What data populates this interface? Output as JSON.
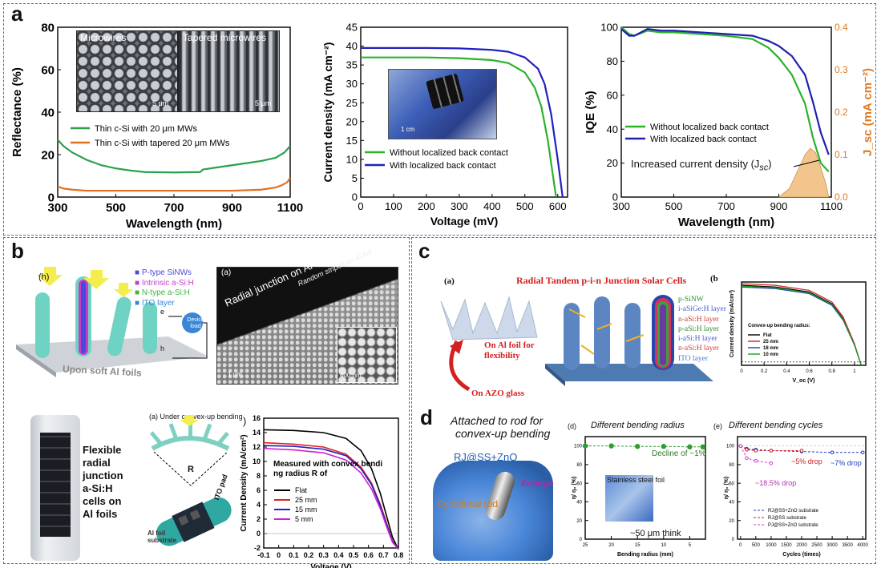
{
  "panel_labels": {
    "a": "a",
    "b": "b",
    "c": "c",
    "d": "d"
  },
  "a": {
    "sem": {
      "left": "Microwires",
      "right": "Tapered microwires",
      "scale_left": "5 μm",
      "scale_right": "5 μm"
    },
    "photo_scale": "1 cm",
    "annotation": "Increased current density (J",
    "annotation_sub": "sc",
    "annotation_close": ")"
  },
  "b": {
    "h_label": "(h)",
    "legend": [
      "P-type SiNWs",
      "Intrinsic a-Si:H",
      "N-type a-Si:H",
      "ITO layer"
    ],
    "device_load": "Device load",
    "e_label": "e",
    "h_carrier": "h",
    "substrate": "Upon soft Al foils",
    "sem_label": "(a)",
    "sem_text1": "Radial junction on Al foil",
    "sem_text2": "Random stripes on Al foil",
    "sem_scale1": "1 μm",
    "sem_scale2": "400 nm",
    "photo_text": [
      "Flexible",
      "radial",
      "junction",
      "a-Si:H",
      "cells on",
      "Al foils"
    ],
    "bend_title": "(a) Under convex-up bending",
    "bend_R": "R",
    "ito_pad": "ITO pad",
    "al_sub": "Al foil substrate",
    "paren": ")"
  },
  "c": {
    "a_label": "(a)",
    "b_label": "(b",
    "title": "Radial Tandem p-i-n Junction Solar Cells",
    "left_text1": "On Al foil for",
    "left_text2": "flexibility",
    "left_text3": "On AZO glass",
    "layers": [
      {
        "text": "p-SiNW",
        "color": "#2e8b2e"
      },
      {
        "text": "i-aSiGe:H layer",
        "color": "#4a5bd0"
      },
      {
        "text": "n-aSi:H layer",
        "color": "#d03a3a"
      },
      {
        "text": "p-aSi:H layer",
        "color": "#2e8b2e"
      },
      {
        "text": "i-aSi:H layer",
        "color": "#4a5bd0"
      },
      {
        "text": "n-aSi:H layer",
        "color": "#d03a3a"
      },
      {
        "text": "ITO layer",
        "color": "#4a7bd0"
      }
    ]
  },
  "d": {
    "title1": "Attached to rod for",
    "title2": "convex-up bending",
    "rj": "RJ@SS+ZnO",
    "enlarge": "Enlarge",
    "rod": "Cylindrical rod",
    "sub_d_label": "(d)",
    "sub_d_title": "Different  bending radius",
    "sub_e_label": "(e)",
    "sub_e_title": "Different  bending cycles",
    "steel_foil": "Stainless steel foil",
    "thick": "~50 μm think",
    "decline": "Decline of ~1%",
    "drop5": "~5% drop",
    "drop7": "~7% drop",
    "drop18": "~18.5% drop"
  },
  "chart_data": [
    {
      "id": "a1",
      "type": "line",
      "xlabel": "Wavelength (nm)",
      "ylabel": "Reflectance (%)",
      "xlim": [
        300,
        1100
      ],
      "ylim": [
        0,
        80
      ],
      "xticks": [
        300,
        500,
        700,
        900,
        1100
      ],
      "yticks": [
        0,
        20,
        40,
        60,
        80
      ],
      "series": [
        {
          "name": "Thin c-Si with 20 μm MWs",
          "color": "#2aa14d",
          "x": [
            300,
            320,
            350,
            400,
            450,
            500,
            550,
            600,
            700,
            790,
            800,
            850,
            900,
            950,
            1000,
            1050,
            1080,
            1100
          ],
          "y": [
            27,
            24,
            21,
            17.5,
            15,
            13.5,
            12.5,
            11.8,
            11.6,
            11.8,
            13,
            14,
            15,
            16,
            17,
            18.5,
            21,
            24
          ]
        },
        {
          "name": "Thin c-Si with tapered 20 μm MWs",
          "color": "#e07020",
          "x": [
            300,
            320,
            350,
            400,
            500,
            600,
            700,
            800,
            900,
            1000,
            1050,
            1070,
            1090,
            1100
          ],
          "y": [
            5,
            4,
            3.5,
            3,
            3,
            3,
            3,
            3,
            3,
            3.5,
            4.5,
            5.5,
            7,
            9
          ]
        }
      ]
    },
    {
      "id": "a2",
      "type": "line",
      "xlabel": "Voltage (mV)",
      "ylabel": "Current density (mA cm⁻²)",
      "xlim": [
        0,
        630
      ],
      "ylim": [
        0,
        45
      ],
      "xticks": [
        0,
        100,
        200,
        300,
        400,
        500,
        600
      ],
      "yticks": [
        0,
        5,
        10,
        15,
        20,
        25,
        30,
        35,
        40,
        45
      ],
      "series": [
        {
          "name": "Without localized back contact",
          "color": "#2bb32b",
          "x": [
            0,
            100,
            200,
            300,
            400,
            450,
            500,
            530,
            550,
            570,
            585,
            595
          ],
          "y": [
            37,
            37,
            37,
            36.8,
            36.3,
            35.5,
            33,
            29,
            24,
            15,
            6,
            0
          ]
        },
        {
          "name": "With localized back contact",
          "color": "#2020c0",
          "x": [
            0,
            100,
            200,
            300,
            400,
            450,
            500,
            540,
            560,
            580,
            600,
            615
          ],
          "y": [
            39.5,
            39.5,
            39.5,
            39.4,
            39,
            38.5,
            37,
            34,
            30,
            22,
            10,
            0
          ]
        }
      ]
    },
    {
      "id": "a3",
      "type": "line",
      "xlabel": "Wavelength (nm)",
      "ylabel": "IQE (%)",
      "ylabel2": "J_sc (mA cm⁻²)",
      "xlim": [
        300,
        1100
      ],
      "ylim": [
        0,
        100
      ],
      "ylim2": [
        0,
        0.4
      ],
      "xticks": [
        300,
        500,
        700,
        900,
        1100
      ],
      "yticks": [
        0,
        20,
        40,
        60,
        80,
        100
      ],
      "yticks2": [
        0.0,
        0.1,
        0.2,
        0.3,
        0.4
      ],
      "series": [
        {
          "name": "Without localized back contact",
          "color": "#2bb32b",
          "x": [
            300,
            330,
            350,
            400,
            450,
            500,
            600,
            700,
            800,
            860,
            900,
            950,
            1000,
            1030,
            1060,
            1090
          ],
          "y": [
            100,
            96,
            95,
            98,
            97,
            97,
            96,
            95,
            93,
            88,
            82,
            72,
            55,
            35,
            20,
            15
          ]
        },
        {
          "name": "With localized back contact",
          "color": "#2020b0",
          "x": [
            300,
            330,
            350,
            400,
            450,
            500,
            600,
            700,
            800,
            860,
            900,
            950,
            1000,
            1030,
            1060,
            1090
          ],
          "y": [
            99,
            95,
            95,
            99,
            98,
            98,
            97,
            96,
            95,
            92,
            89,
            83,
            72,
            56,
            38,
            25
          ]
        }
      ]
    },
    {
      "id": "b1",
      "type": "line",
      "xlabel": "Voltage (V)",
      "ylabel": "Current Density (mA/cm²)",
      "xlim": [
        -0.1,
        0.8
      ],
      "ylim": [
        -2,
        16
      ],
      "xticks": [
        -0.1,
        0.0,
        0.1,
        0.2,
        0.3,
        0.4,
        0.5,
        0.6,
        0.7,
        0.8
      ],
      "yticks": [
        -2,
        0,
        2,
        4,
        6,
        8,
        10,
        12,
        14,
        16
      ],
      "legend_title": "Measured with convex bending radius R of",
      "series": [
        {
          "name": "Flat",
          "color": "#000000",
          "x": [
            -0.1,
            0.1,
            0.3,
            0.45,
            0.55,
            0.62,
            0.68,
            0.72,
            0.76,
            0.8
          ],
          "y": [
            14.4,
            14.3,
            14,
            13.2,
            11.5,
            9,
            5.5,
            2.5,
            -0.5,
            -2.2
          ]
        },
        {
          "name": "25 mm",
          "color": "#e02020",
          "x": [
            -0.1,
            0.1,
            0.3,
            0.45,
            0.55,
            0.62,
            0.68,
            0.72,
            0.76,
            0.8
          ],
          "y": [
            12.6,
            12.4,
            12,
            11,
            9.2,
            7,
            4,
            1.5,
            -1,
            -2.2
          ]
        },
        {
          "name": "15 mm",
          "color": "#2020c0",
          "x": [
            -0.1,
            0.1,
            0.3,
            0.45,
            0.55,
            0.62,
            0.68,
            0.72,
            0.76,
            0.8
          ],
          "y": [
            12.2,
            12.1,
            11.7,
            10.8,
            9,
            6.8,
            3.8,
            1.3,
            -1.1,
            -2.2
          ]
        },
        {
          "name": "5 mm",
          "color": "#d020d0",
          "x": [
            -0.1,
            0.1,
            0.3,
            0.45,
            0.55,
            0.62,
            0.68,
            0.72,
            0.76,
            0.8
          ],
          "y": [
            11.8,
            11.6,
            11.2,
            10.2,
            8.4,
            6.2,
            3.4,
            1,
            -1.2,
            -2.2
          ]
        }
      ]
    },
    {
      "id": "c1",
      "type": "line",
      "xlabel": "V_oc (V)",
      "ylabel": "Current density (mA/cm²)",
      "xlim": [
        0,
        1.1
      ],
      "ylim": [
        0,
        10
      ],
      "xticks": [
        0.0,
        0.2,
        0.4,
        0.6,
        0.8,
        1.0
      ],
      "legend_title": "Convex-up bending radius:",
      "series": [
        {
          "name": "Flat",
          "color": "#000000",
          "x": [
            0,
            0.3,
            0.6,
            0.8,
            0.9,
            1.0,
            1.06
          ],
          "y": [
            9.6,
            9.4,
            8.8,
            7.4,
            5.6,
            2.5,
            0
          ]
        },
        {
          "name": "25 mm",
          "color": "#d02020",
          "x": [
            0,
            0.3,
            0.6,
            0.8,
            0.9,
            1.0,
            1.06
          ],
          "y": [
            9.8,
            9.6,
            9,
            7.6,
            5.8,
            2.6,
            0
          ]
        },
        {
          "name": "18 mm",
          "color": "#2040c0",
          "x": [
            0,
            0.3,
            0.6,
            0.8,
            0.9,
            1.0,
            1.06
          ],
          "y": [
            9.4,
            9.2,
            8.6,
            7.2,
            5.4,
            2.4,
            0
          ]
        },
        {
          "name": "10 mm",
          "color": "#20a020",
          "x": [
            0,
            0.3,
            0.6,
            0.8,
            0.9,
            1.0,
            1.06
          ],
          "y": [
            9.5,
            9.3,
            8.7,
            7.3,
            5.5,
            2.45,
            0
          ]
        }
      ]
    },
    {
      "id": "d1",
      "type": "scatter",
      "xlabel": "Bending radius (mm)",
      "ylabel": "η/ η₀ (%)",
      "xlim": [
        25,
        2
      ],
      "ylim": [
        0,
        110
      ],
      "xticks": [
        25,
        20,
        15,
        10,
        5
      ],
      "yticks": [
        0,
        20,
        40,
        60,
        80,
        100
      ],
      "series": [
        {
          "name": "RJ@SS+ZnO",
          "color": "#2e9e2e",
          "x": [
            25,
            20,
            15,
            10,
            5,
            2.5
          ],
          "y": [
            100,
            100,
            99.5,
            99.5,
            99,
            99
          ]
        }
      ]
    },
    {
      "id": "d2",
      "type": "line",
      "xlabel": "Cycles (times)",
      "ylabel": "η/ η₀ (%)",
      "xlim": [
        -100,
        4100
      ],
      "ylim": [
        0,
        110
      ],
      "xticks": [
        0,
        500,
        1000,
        1500,
        2000,
        2500,
        3000,
        3500,
        4000
      ],
      "yticks": [
        0,
        20,
        40,
        60,
        80,
        100
      ],
      "series": [
        {
          "name": "RJ@SS+ZnO substrate",
          "color": "#2040c0",
          "x": [
            0,
            200,
            500,
            1000,
            2000,
            3000,
            4000
          ],
          "y": [
            100,
            97,
            96,
            95,
            94,
            93,
            93
          ]
        },
        {
          "name": "RJ@SS substrate",
          "color": "#d02020",
          "x": [
            0,
            200,
            500,
            1000,
            2000
          ],
          "y": [
            100,
            96,
            95,
            95,
            95
          ]
        },
        {
          "name": "PJ@SS+ZnO substrate",
          "color": "#d040d0",
          "x": [
            0,
            200,
            500,
            1000
          ],
          "y": [
            100,
            87,
            84,
            81.5
          ]
        }
      ]
    }
  ]
}
